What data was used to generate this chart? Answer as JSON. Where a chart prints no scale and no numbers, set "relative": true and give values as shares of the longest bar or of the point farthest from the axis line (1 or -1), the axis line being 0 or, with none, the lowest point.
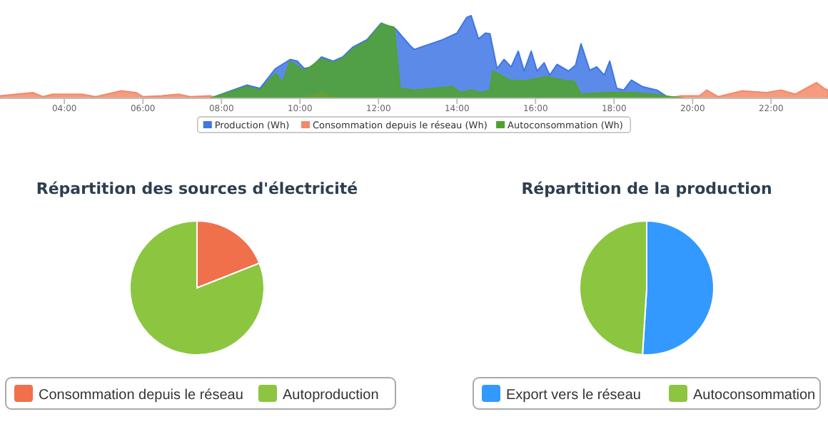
{
  "chart_data": [
    {
      "type": "area",
      "relative": true,
      "xlim": [
        2.36,
        23.45
      ],
      "xticks": [
        {
          "value": 4,
          "label": "04:00"
        },
        {
          "value": 6,
          "label": "06:00"
        },
        {
          "value": 8,
          "label": "08:00"
        },
        {
          "value": 10,
          "label": "10:00"
        },
        {
          "value": 12,
          "label": "12:00"
        },
        {
          "value": 14,
          "label": "14:00"
        },
        {
          "value": 16,
          "label": "16:00"
        },
        {
          "value": 18,
          "label": "18:00"
        },
        {
          "value": 20,
          "label": "20:00"
        },
        {
          "value": 22,
          "label": "22:00"
        }
      ],
      "legend": "bottom",
      "series": [
        {
          "name": "Production (Wh)",
          "color": "#3f76e4",
          "x": [
            2.36,
            7.71,
            8.65,
            8.98,
            9.38,
            9.75,
            9.93,
            10.11,
            10.29,
            10.55,
            10.84,
            11.09,
            11.35,
            11.71,
            12.07,
            12.44,
            12.8,
            12.91,
            13.64,
            14.0,
            14.25,
            14.36,
            14.55,
            14.73,
            14.84,
            15.02,
            15.2,
            15.38,
            15.56,
            15.71,
            15.89,
            16.04,
            16.22,
            16.36,
            16.55,
            16.84,
            17.02,
            17.16,
            17.38,
            17.56,
            17.75,
            17.89,
            18.07,
            18.25,
            18.44,
            18.73,
            19.09,
            19.35,
            19.45,
            23.45
          ],
          "values": [
            0,
            0,
            0.16,
            0.12,
            0.36,
            0.47,
            0.45,
            0.36,
            0.38,
            0.5,
            0.45,
            0.5,
            0.62,
            0.71,
            0.91,
            0.84,
            0.64,
            0.59,
            0.71,
            0.79,
            0.98,
            1,
            0.72,
            0.79,
            0.78,
            0.36,
            0.47,
            0.38,
            0.57,
            0.33,
            0.57,
            0.33,
            0.43,
            0.28,
            0.41,
            0.33,
            0.4,
            0.66,
            0.34,
            0.38,
            0.28,
            0.45,
            0.12,
            0.1,
            0.22,
            0.14,
            0.1,
            0.02,
            0,
            0
          ]
        },
        {
          "name": "Consommation depuis le réseau (Wh)",
          "color": "#f2896a",
          "x": [
            2.36,
            3.2,
            3.45,
            3.71,
            4.44,
            4.8,
            5.45,
            5.82,
            6.0,
            6.47,
            6.91,
            7.2,
            7.71,
            7.93,
            10.0,
            10.55,
            10.91,
            19.35,
            19.71,
            20.18,
            20.36,
            20.65,
            21.27,
            21.89,
            22.25,
            22.62,
            23.16,
            23.35,
            23.45
          ],
          "values": [
            0.03,
            0.07,
            0.02,
            0.05,
            0.05,
            0.02,
            0.09,
            0.07,
            0.02,
            0.03,
            0.05,
            0.02,
            0.03,
            0,
            0,
            0.07,
            0,
            0,
            0.03,
            0.03,
            0.1,
            0.02,
            0.09,
            0.07,
            0.1,
            0.05,
            0.19,
            0.12,
            0.1
          ]
        },
        {
          "name": "Autoconsommation (Wh)",
          "color": "#4fa32c",
          "x": [
            2.36,
            7.71,
            8.65,
            8.98,
            9.38,
            9.56,
            9.75,
            10.11,
            10.55,
            10.84,
            11.09,
            11.35,
            11.71,
            12.07,
            12.4,
            12.55,
            12.91,
            13.89,
            14.07,
            14.36,
            14.62,
            14.84,
            14.91,
            15.34,
            15.71,
            16.29,
            16.8,
            16.98,
            17.16,
            17.75,
            18.47,
            18.98,
            19.45,
            19.82,
            23.45
          ],
          "values": [
            0,
            0,
            0.14,
            0.1,
            0.3,
            0.19,
            0.45,
            0.33,
            0.48,
            0.43,
            0.48,
            0.6,
            0.69,
            0.9,
            0.86,
            0.12,
            0.1,
            0.14,
            0.07,
            0.1,
            0.07,
            0.1,
            0.33,
            0.22,
            0.21,
            0.26,
            0.21,
            0.21,
            0.05,
            0.07,
            0.07,
            0.05,
            0.02,
            0,
            0
          ]
        }
      ]
    },
    {
      "type": "pie",
      "title": "Répartition des sources d'électricité",
      "categories": [
        "Consommation depuis le réseau",
        "Autoproduction"
      ],
      "values": [
        19,
        81
      ],
      "colors": [
        "#f0704c",
        "#8cc540"
      ],
      "legend": "bottom"
    },
    {
      "type": "pie",
      "title": "Répartition de la production",
      "categories": [
        "Export vers le réseau",
        "Autoconsommation"
      ],
      "values": [
        51,
        49
      ],
      "colors": [
        "#3399ff",
        "#8cc540"
      ],
      "legend": "bottom"
    }
  ]
}
